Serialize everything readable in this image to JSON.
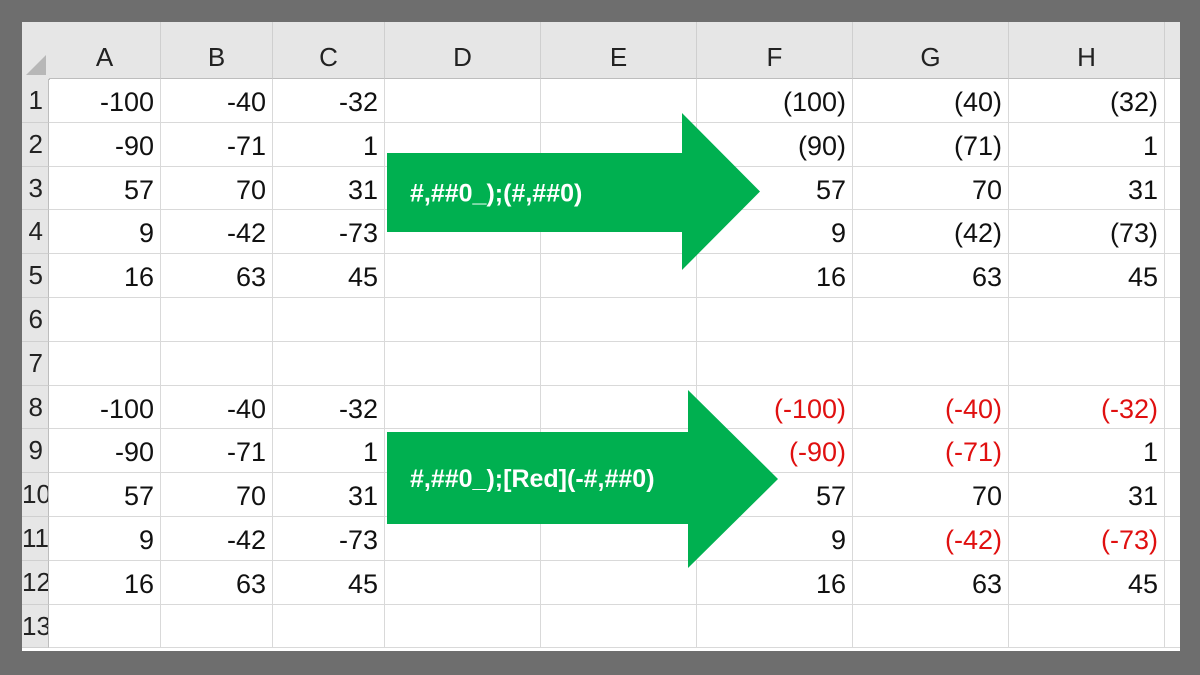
{
  "columns": [
    "A",
    "B",
    "C",
    "D",
    "E",
    "F",
    "G",
    "H"
  ],
  "rows": [
    "1",
    "2",
    "3",
    "4",
    "5",
    "6",
    "7",
    "8",
    "9",
    "10",
    "11",
    "12",
    "13"
  ],
  "accent_color": "#00b050",
  "negative_color": "#e01010",
  "cells": {
    "1": {
      "A": "-100",
      "B": "-40",
      "C": "-32",
      "F": "(100)",
      "G": "(40)",
      "H": "(32)"
    },
    "2": {
      "A": "-90",
      "B": "-71",
      "C": "1",
      "F": "(90)",
      "G": "(71)",
      "H": "1"
    },
    "3": {
      "A": "57",
      "B": "70",
      "C": "31",
      "F": "57",
      "G": "70",
      "H": "31"
    },
    "4": {
      "A": "9",
      "B": "-42",
      "C": "-73",
      "F": "9",
      "G": "(42)",
      "H": "(73)"
    },
    "5": {
      "A": "16",
      "B": "63",
      "C": "45",
      "F": "16",
      "G": "63",
      "H": "45"
    },
    "8": {
      "A": "-100",
      "B": "-40",
      "C": "-32",
      "F": "(-100)",
      "G": "(-40)",
      "H": "(-32)"
    },
    "9": {
      "A": "-90",
      "B": "-71",
      "C": "1",
      "F": "(-90)",
      "G": "(-71)",
      "H": "1"
    },
    "10": {
      "A": "57",
      "B": "70",
      "C": "31",
      "F": "57",
      "G": "70",
      "H": "31"
    },
    "11": {
      "A": "9",
      "B": "-42",
      "C": "-73",
      "F": "9",
      "G": "(-42)",
      "H": "(-73)"
    },
    "12": {
      "A": "16",
      "B": "63",
      "C": "45",
      "F": "16",
      "G": "63",
      "H": "45"
    }
  },
  "red_cells": [
    "8F",
    "8G",
    "8H",
    "9F",
    "9G",
    "11G",
    "11H"
  ],
  "arrows": [
    {
      "label": "#,##0_);(#,##0)"
    },
    {
      "label": "#,##0_);[Red](-#,##0)"
    }
  ]
}
